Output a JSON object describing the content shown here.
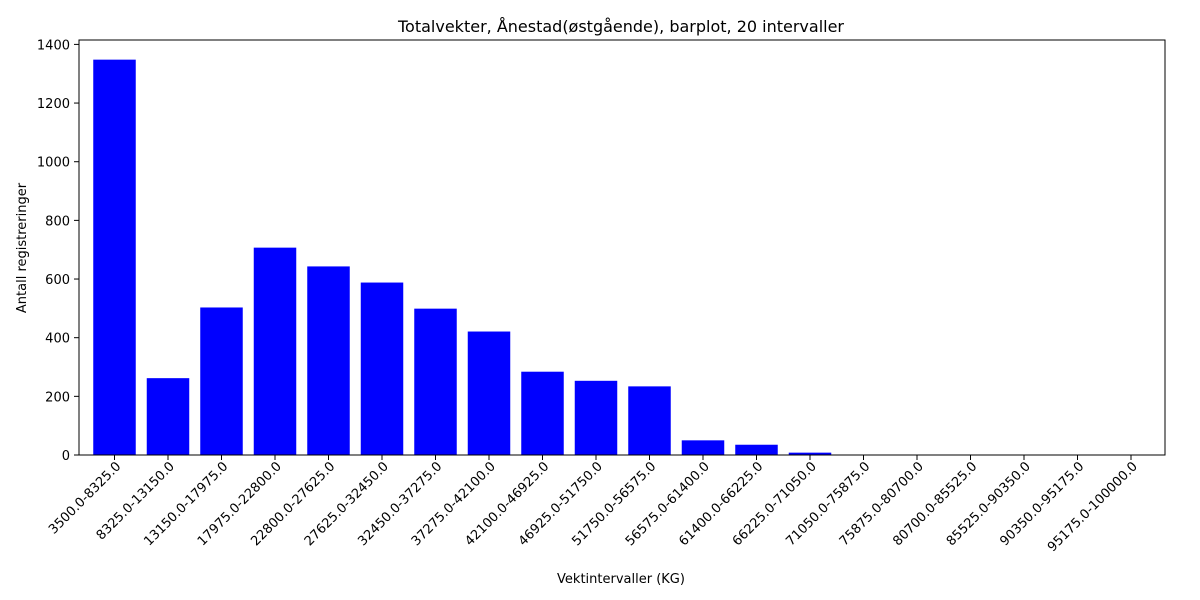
{
  "chart_data": {
    "type": "bar",
    "title": "Totalvekter, Ånestad(østgående), barplot, 20 intervaller",
    "xlabel": "Vektintervaller (KG)",
    "ylabel": "Antall registreringer",
    "categories": [
      "3500.0-8325.0",
      "8325.0-13150.0",
      "13150.0-17975.0",
      "17975.0-22800.0",
      "22800.0-27625.0",
      "27625.0-32450.0",
      "32450.0-37275.0",
      "37275.0-42100.0",
      "42100.0-46925.0",
      "46925.0-51750.0",
      "51750.0-56575.0",
      "56575.0-61400.0",
      "61400.0-66225.0",
      "66225.0-71050.0",
      "71050.0-75875.0",
      "75875.0-80700.0",
      "80700.0-85525.0",
      "85525.0-90350.0",
      "90350.0-95175.0",
      "95175.0-100000.0"
    ],
    "values": [
      1348,
      262,
      503,
      707,
      643,
      588,
      499,
      421,
      284,
      253,
      234,
      50,
      35,
      8,
      0,
      0,
      0,
      0,
      0,
      0
    ],
    "yticks": [
      "0",
      "200",
      "400",
      "600",
      "800",
      "1000",
      "1200",
      "1400"
    ],
    "ylim": [
      0,
      1400
    ],
    "bar_color": "#0000ff",
    "grid": false,
    "legend": "none"
  }
}
